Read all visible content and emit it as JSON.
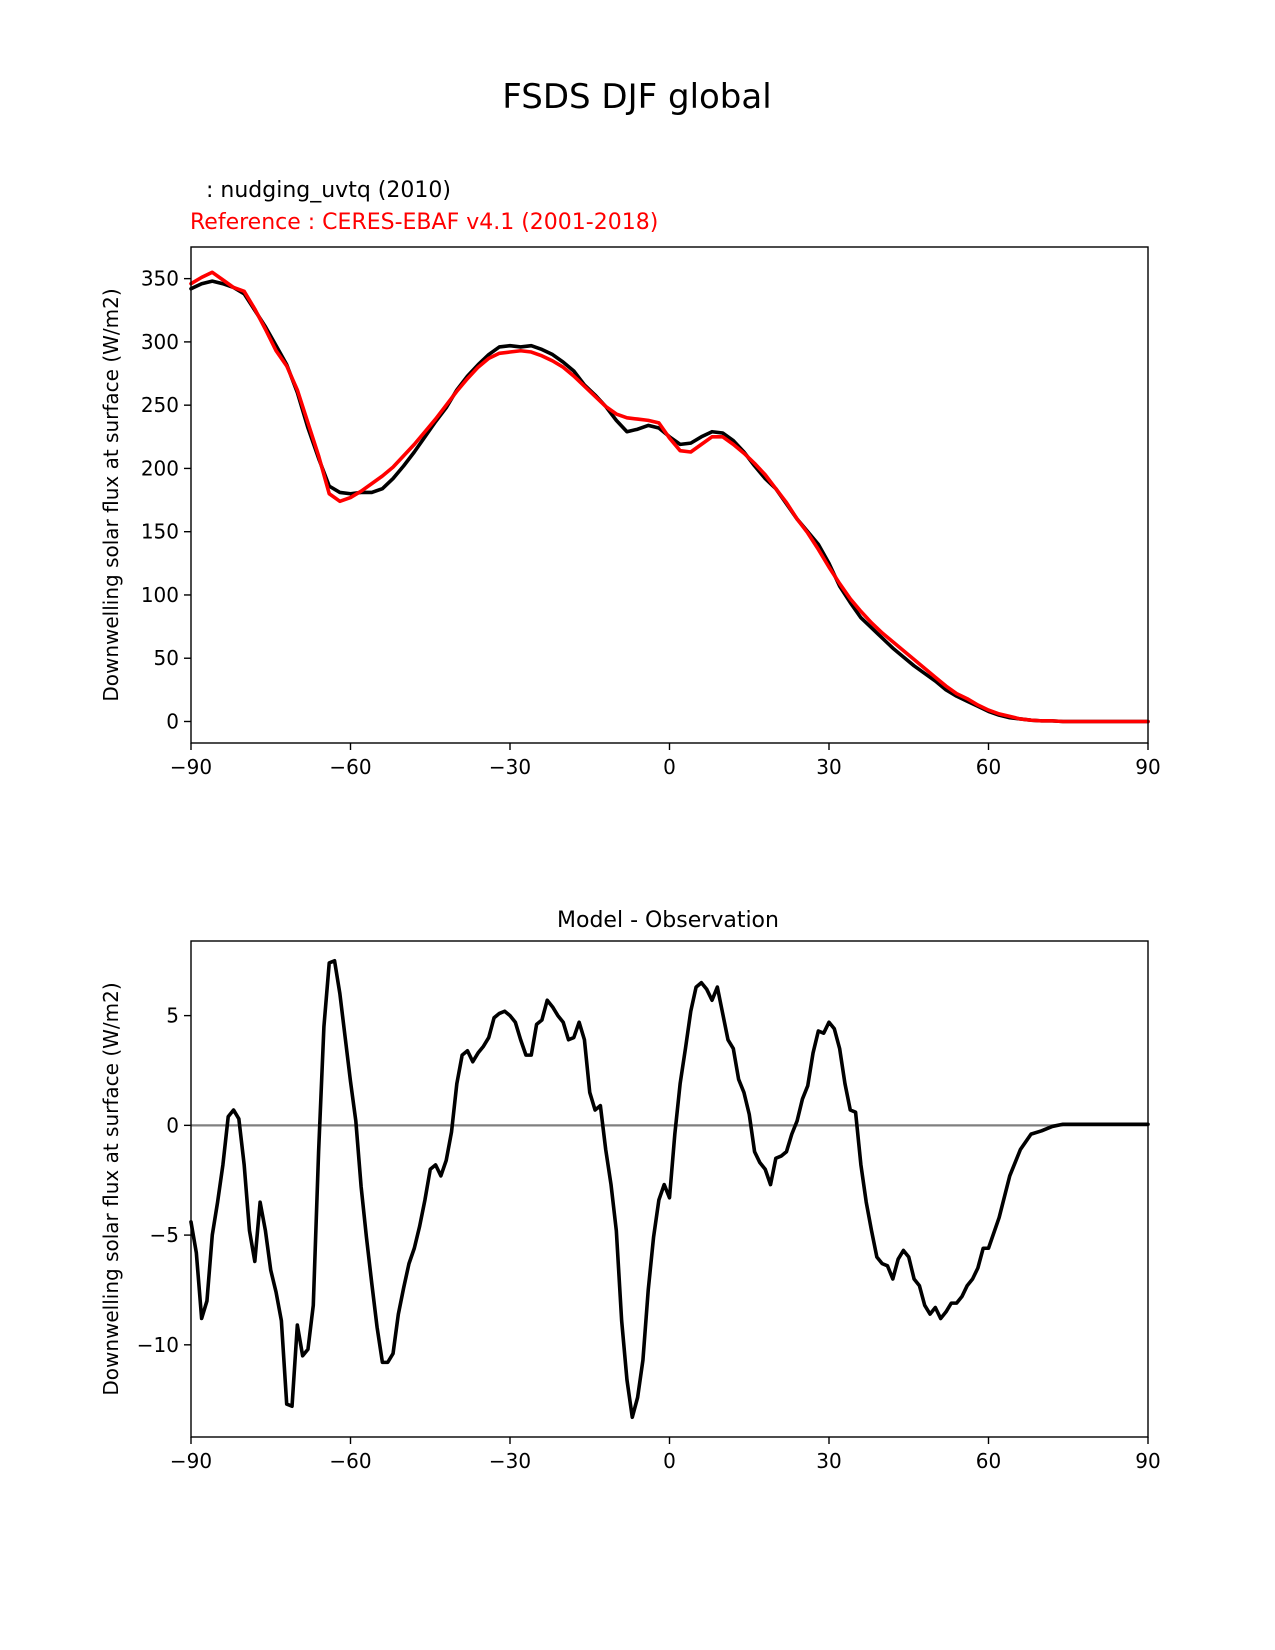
{
  "figure": {
    "suptitle": "FSDS DJF global",
    "colors": {
      "test": "#000000",
      "reference": "#ff0000",
      "zero_line": "#808080",
      "axes": "#000000"
    }
  },
  "chart_data": [
    {
      "type": "line",
      "title_test": " : nudging_uvtq (2010)",
      "title_reference": "Reference : CERES-EBAF v4.1 (2001-2018)",
      "xlabel": "",
      "ylabel": "Downwelling solar flux at surface (W/m2)",
      "xlim": [
        -90,
        90
      ],
      "ylim": [
        -17,
        375
      ],
      "xticks": [
        -90,
        -60,
        -30,
        0,
        30,
        60,
        90
      ],
      "xtick_labels": [
        "−90",
        "−60",
        "−30",
        "0",
        "30",
        "60",
        "90"
      ],
      "yticks": [
        0,
        50,
        100,
        150,
        200,
        250,
        300,
        350
      ],
      "ytick_labels": [
        "0",
        "50",
        "100",
        "150",
        "200",
        "250",
        "300",
        "350"
      ],
      "series": [
        {
          "role": "test",
          "x": [
            -90,
            -88,
            -86,
            -84,
            -82,
            -80,
            -78,
            -76,
            -74,
            -72,
            -70,
            -68,
            -66,
            -64,
            -62,
            -60,
            -58,
            -56,
            -54,
            -52,
            -50,
            -48,
            -46,
            -44,
            -42,
            -40,
            -38,
            -36,
            -34,
            -32,
            -30,
            -28,
            -26,
            -24,
            -22,
            -20,
            -18,
            -16,
            -14,
            -12,
            -10,
            -8,
            -6,
            -4,
            -2,
            0,
            2,
            4,
            6,
            8,
            10,
            12,
            14,
            16,
            18,
            20,
            22,
            24,
            26,
            28,
            30,
            32,
            34,
            36,
            38,
            40,
            42,
            44,
            46,
            48,
            50,
            52,
            54,
            56,
            58,
            60,
            62,
            64,
            66,
            68,
            70,
            72,
            74,
            76,
            78,
            80,
            82,
            84,
            86,
            88,
            90
          ],
          "y": [
            342,
            346,
            348,
            346,
            343,
            338,
            325,
            312,
            297,
            282,
            260,
            232,
            208,
            186,
            181,
            180,
            181,
            181,
            184,
            192,
            202,
            213,
            225,
            237,
            248,
            262,
            273,
            282,
            290,
            296,
            297,
            296,
            297,
            294,
            290,
            284,
            277,
            266,
            258,
            249,
            238,
            229,
            231,
            234,
            232,
            225,
            219,
            220,
            225,
            229,
            228,
            222,
            213,
            202,
            192,
            184,
            172,
            160,
            150,
            140,
            125,
            107,
            94,
            82,
            74,
            66,
            58,
            51,
            44,
            38,
            32,
            25,
            20,
            16,
            12,
            8,
            5,
            3,
            2,
            1,
            0.5,
            0.5,
            0,
            0,
            0,
            0,
            0,
            0,
            0,
            0,
            0
          ]
        },
        {
          "role": "reference",
          "x": [
            -90,
            -88,
            -86,
            -84,
            -82,
            -80,
            -78,
            -76,
            -74,
            -72,
            -70,
            -68,
            -66,
            -64,
            -62,
            -60,
            -58,
            -56,
            -54,
            -52,
            -50,
            -48,
            -46,
            -44,
            -42,
            -40,
            -38,
            -36,
            -34,
            -32,
            -30,
            -28,
            -26,
            -24,
            -22,
            -20,
            -18,
            -16,
            -14,
            -12,
            -10,
            -8,
            -6,
            -4,
            -2,
            0,
            2,
            4,
            6,
            8,
            10,
            12,
            14,
            16,
            18,
            20,
            22,
            24,
            26,
            28,
            30,
            32,
            34,
            36,
            38,
            40,
            42,
            44,
            46,
            48,
            50,
            52,
            54,
            56,
            58,
            60,
            62,
            64,
            66,
            68,
            70,
            72,
            74,
            76,
            78,
            80,
            82,
            84,
            86,
            88,
            90
          ],
          "y": [
            346,
            351,
            355,
            349,
            343,
            340,
            326,
            310,
            293,
            281,
            262,
            236,
            210,
            180,
            174,
            177,
            182,
            188,
            194,
            201,
            210,
            219,
            229,
            239,
            250,
            261,
            271,
            280,
            287,
            291,
            292,
            293,
            292,
            289,
            285,
            280,
            273,
            265,
            257,
            249,
            243,
            240,
            239,
            238,
            236,
            224,
            214,
            213,
            219,
            225,
            225,
            219,
            212,
            204,
            195,
            184,
            173,
            160,
            149,
            136,
            122,
            109,
            97,
            87,
            78,
            70,
            63,
            56,
            49,
            42,
            35,
            28,
            22,
            18,
            13,
            9,
            6,
            4,
            2,
            1,
            0.5,
            0.5,
            0,
            0,
            0,
            0,
            0,
            0,
            0,
            0,
            0
          ]
        }
      ]
    },
    {
      "type": "line",
      "title": "Model - Observation",
      "xlabel": "",
      "ylabel": "Downwelling solar flux at surface (W/m2)",
      "xlim": [
        -90,
        90
      ],
      "ylim": [
        -14.2,
        8.4
      ],
      "xticks": [
        -90,
        -60,
        -30,
        0,
        30,
        60,
        90
      ],
      "xtick_labels": [
        "−90",
        "−60",
        "−30",
        "0",
        "30",
        "60",
        "90"
      ],
      "yticks": [
        -10,
        -5,
        0,
        5
      ],
      "ytick_labels": [
        "−10",
        "−5",
        "0",
        "5"
      ],
      "zero_line": 0,
      "series": [
        {
          "role": "difference",
          "x": [
            -90,
            -89,
            -88,
            -87,
            -86,
            -85,
            -84,
            -83,
            -82,
            -81,
            -80,
            -79,
            -78,
            -77,
            -76,
            -75,
            -74,
            -73,
            -72,
            -71,
            -70,
            -69,
            -68,
            -67,
            -66,
            -65,
            -64,
            -63,
            -62,
            -61,
            -60,
            -59,
            -58,
            -57,
            -56,
            -55,
            -54,
            -53,
            -52,
            -51,
            -50,
            -49,
            -48,
            -47,
            -46,
            -45,
            -44,
            -43,
            -42,
            -41,
            -40,
            -39,
            -38,
            -37,
            -36,
            -35,
            -34,
            -33,
            -32,
            -31,
            -30,
            -29,
            -28,
            -27,
            -26,
            -25,
            -24,
            -23,
            -22,
            -21,
            -20,
            -19,
            -18,
            -17,
            -16,
            -15,
            -14,
            -13,
            -12,
            -11,
            -10,
            -9,
            -8,
            -7,
            -6,
            -5,
            -4,
            -3,
            -2,
            -1,
            0,
            1,
            2,
            3,
            4,
            5,
            6,
            7,
            8,
            9,
            10,
            11,
            12,
            13,
            14,
            15,
            16,
            17,
            18,
            19,
            20,
            21,
            22,
            23,
            24,
            25,
            26,
            27,
            28,
            29,
            30,
            31,
            32,
            33,
            34,
            35,
            36,
            37,
            38,
            39,
            40,
            41,
            42,
            43,
            44,
            45,
            46,
            47,
            48,
            49,
            50,
            51,
            52,
            53,
            54,
            55,
            56,
            57,
            58,
            59,
            60,
            62,
            64,
            66,
            68,
            70,
            72,
            74,
            76,
            78,
            80,
            82,
            84,
            86,
            88,
            90
          ],
          "y": [
            -4.4,
            -5.8,
            -8.8,
            -8,
            -5,
            -3.5,
            -1.8,
            0.4,
            0.7,
            0.3,
            -1.8,
            -4.8,
            -6.2,
            -3.5,
            -4.8,
            -6.6,
            -7.6,
            -8.9,
            -12.7,
            -12.8,
            -9.1,
            -10.5,
            -10.2,
            -8.2,
            -1.2,
            4.5,
            7.4,
            7.5,
            6,
            4,
            2,
            0.2,
            -2.8,
            -5.1,
            -7.2,
            -9.2,
            -10.8,
            -10.8,
            -10.4,
            -8.6,
            -7.4,
            -6.3,
            -5.6,
            -4.6,
            -3.4,
            -2,
            -1.8,
            -2.3,
            -1.6,
            -0.3,
            1.9,
            3.2,
            3.4,
            2.9,
            3.3,
            3.6,
            4,
            4.9,
            5.1,
            5.2,
            5,
            4.7,
            3.9,
            3.2,
            3.2,
            4.6,
            4.8,
            5.7,
            5.4,
            5,
            4.7,
            3.9,
            4,
            4.7,
            3.9,
            1.5,
            0.7,
            0.9,
            -1.1,
            -2.7,
            -4.8,
            -8.9,
            -11.6,
            -13.3,
            -12.4,
            -10.7,
            -7.5,
            -5.1,
            -3.4,
            -2.7,
            -3.3,
            -0.4,
            1.9,
            3.5,
            5.2,
            6.3,
            6.5,
            6.2,
            5.7,
            6.3,
            5.1,
            3.9,
            3.5,
            2.1,
            1.5,
            0.5,
            -1.2,
            -1.7,
            -2,
            -2.7,
            -1.5,
            -1.4,
            -1.2,
            -0.4,
            0.2,
            1.2,
            1.8,
            3.3,
            4.3,
            4.2,
            4.7,
            4.4,
            3.5,
            1.9,
            0.7,
            0.6,
            -1.8,
            -3.5,
            -4.8,
            -6,
            -6.3,
            -6.4,
            -7,
            -6.1,
            -5.7,
            -6,
            -7,
            -7.3,
            -8.2,
            -8.6,
            -8.3,
            -8.8,
            -8.5,
            -8.1,
            -8.1,
            -7.8,
            -7.3,
            -7,
            -6.5,
            -5.6,
            -5.6,
            -4.2,
            -2.3,
            -1.1,
            -0.4,
            -0.25,
            -0.05,
            0.05,
            0.05,
            0.05,
            0.05,
            0.05,
            0.05,
            0.05,
            0.05,
            0.05
          ]
        }
      ]
    }
  ]
}
